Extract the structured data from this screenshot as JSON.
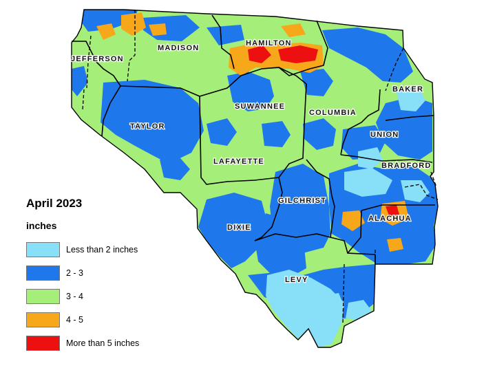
{
  "legend": {
    "title": "April 2023",
    "units": "inches",
    "classes": [
      {
        "label": "Less than 2 inches",
        "color": "#87e0f7"
      },
      {
        "label": "2 - 3",
        "color": "#1e78ec"
      },
      {
        "label": "3 - 4",
        "color": "#a6ee7a"
      },
      {
        "label": "4 - 5",
        "color": "#f7a71a"
      },
      {
        "label": "More than 5 inches",
        "color": "#ec1010"
      }
    ]
  },
  "counties": {
    "jefferson": "JEFFERSON",
    "madison": "MADISON",
    "hamilton": "HAMILTON",
    "baker": "BAKER",
    "taylor": "TAYLOR",
    "suwannee": "SUWANNEE",
    "columbia": "COLUMBIA",
    "union": "UNION",
    "bradford": "BRADFORD",
    "lafayette": "LAFAYETTE",
    "gilchrist": "GILCHRIST",
    "alachua": "ALACHUA",
    "dixie": "DIXIE",
    "levy": "LEVY"
  }
}
